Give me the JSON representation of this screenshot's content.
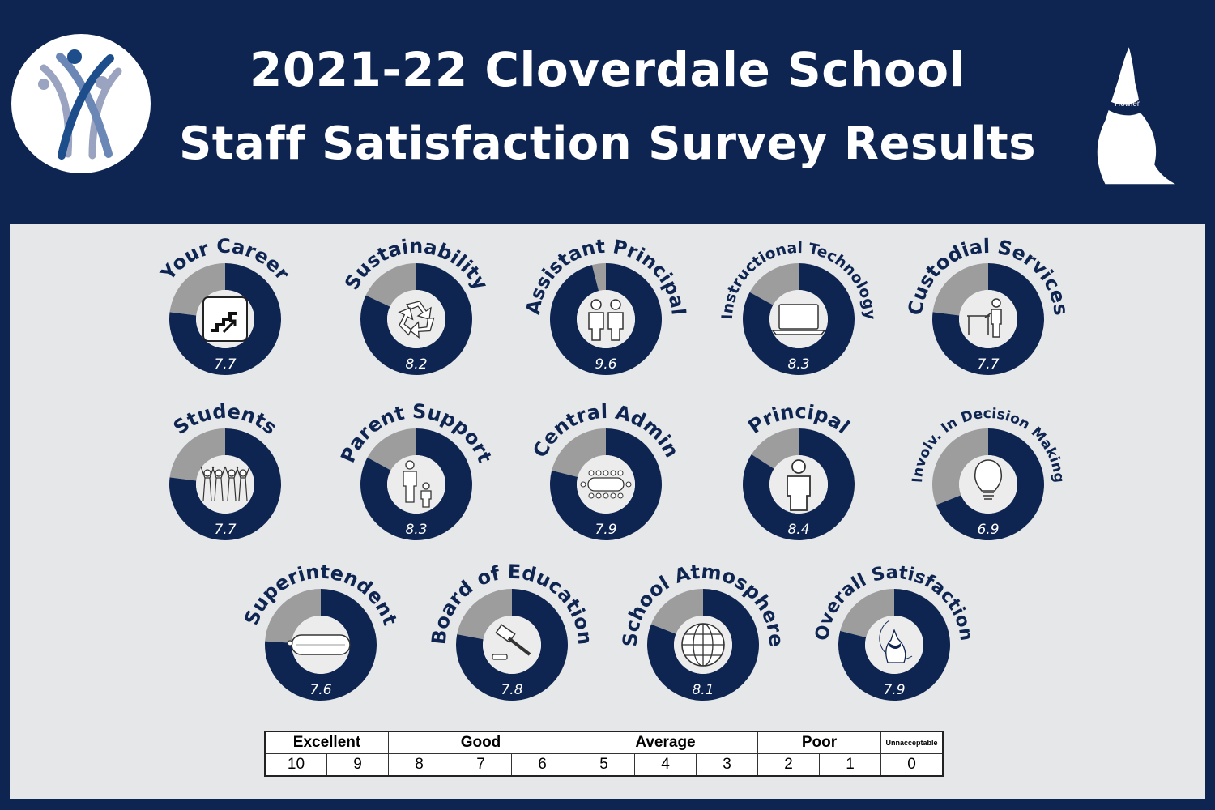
{
  "header": {
    "title_line1": "2021-22 Cloverdale School",
    "title_line2": "Staff Satisfaction Survey Results",
    "left_logo": "people-figures-logo",
    "right_logo": "howler-wolf-mascot",
    "mascot_bandana_text": "Howler"
  },
  "colors": {
    "header_bg": "#0f2551",
    "panel_bg": "#e6e7e9",
    "ring_fill": "#0f2551",
    "ring_remainder": "#9d9d9e"
  },
  "chart_data": {
    "type": "pie",
    "scale_max": 10,
    "items": [
      {
        "category": "Your Career",
        "value": 7.7,
        "label": "7.7",
        "icon": "stairs-up-icon"
      },
      {
        "category": "Sustainability",
        "value": 8.2,
        "label": "8.2",
        "icon": "recycle-icon"
      },
      {
        "category": "Assistant Principal",
        "value": 9.6,
        "label": "9.6",
        "icon": "two-people-icon"
      },
      {
        "category": "Instructional Technology",
        "value": 8.3,
        "label": "8.3",
        "icon": "laptop-icon"
      },
      {
        "category": "Custodial Services",
        "value": 7.7,
        "label": "7.7",
        "icon": "custodian-table-icon"
      },
      {
        "category": "Students",
        "value": 7.7,
        "label": "7.7",
        "icon": "students-cheering-icon"
      },
      {
        "category": "Parent Support",
        "value": 8.3,
        "label": "8.3",
        "icon": "parent-child-icon"
      },
      {
        "category": "Central Admin",
        "value": 7.9,
        "label": "7.9",
        "icon": "conference-table-icon"
      },
      {
        "category": "Principal",
        "value": 8.4,
        "label": "8.4",
        "icon": "person-icon"
      },
      {
        "category": "Involv. In Decision Making",
        "value": 6.9,
        "label": "6.9",
        "icon": "lightbulb-icon"
      },
      {
        "category": "Superintendent",
        "value": 7.6,
        "label": "7.6",
        "icon": "sub-sandwich-icon"
      },
      {
        "category": "Board of Education",
        "value": 7.8,
        "label": "7.8",
        "icon": "gavel-icon"
      },
      {
        "category": "School Atmosphere",
        "value": 8.1,
        "label": "8.1",
        "icon": "globe-icon"
      },
      {
        "category": "Overall Satisfaction",
        "value": 7.9,
        "label": "7.9",
        "icon": "howler-mascot-icon"
      }
    ]
  },
  "scale_legend": {
    "groups": [
      {
        "label": "Excellent",
        "span": 2
      },
      {
        "label": "Good",
        "span": 3
      },
      {
        "label": "Average",
        "span": 3
      },
      {
        "label": "Poor",
        "span": 2
      },
      {
        "label": "Unnacceptable",
        "span": 1
      }
    ],
    "values": [
      "10",
      "9",
      "8",
      "7",
      "6",
      "5",
      "4",
      "3",
      "2",
      "1",
      "0"
    ]
  }
}
